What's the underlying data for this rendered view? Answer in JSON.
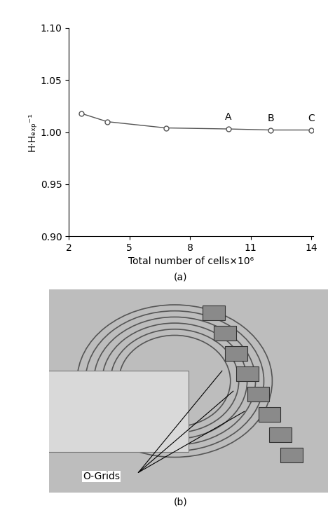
{
  "chart_data": {
    "type": "line",
    "caption": "(a)",
    "x_label": "Total number of cells×10⁶",
    "y_label": "H·Hₑₓₚ⁻¹",
    "x": [
      2.6,
      3.9,
      6.8,
      9.9,
      12.0,
      14.0
    ],
    "values": [
      1.018,
      1.01,
      1.004,
      1.003,
      1.002,
      1.002
    ],
    "color": "#555555",
    "marker": "circle",
    "xlim": [
      2,
      14.1
    ],
    "xticks": [
      2,
      5,
      8,
      11,
      14
    ],
    "ylim": [
      0.9,
      1.1
    ],
    "yticks": [
      {
        "value": 0.9,
        "label": "0.90"
      },
      {
        "value": 0.95,
        "label": "0.95"
      },
      {
        "value": 1.0,
        "label": "1.00"
      },
      {
        "value": 1.05,
        "label": "1.05"
      },
      {
        "value": 1.1,
        "label": "1.10"
      }
    ],
    "annotations": [
      {
        "text": "A",
        "x": 9.9,
        "y": 1.003
      },
      {
        "text": "B",
        "x": 12.0,
        "y": 1.002
      },
      {
        "text": "C",
        "x": 14.0,
        "y": 1.002
      }
    ]
  },
  "image_panel": {
    "caption": "(b)",
    "annotation": "O-Grids"
  }
}
